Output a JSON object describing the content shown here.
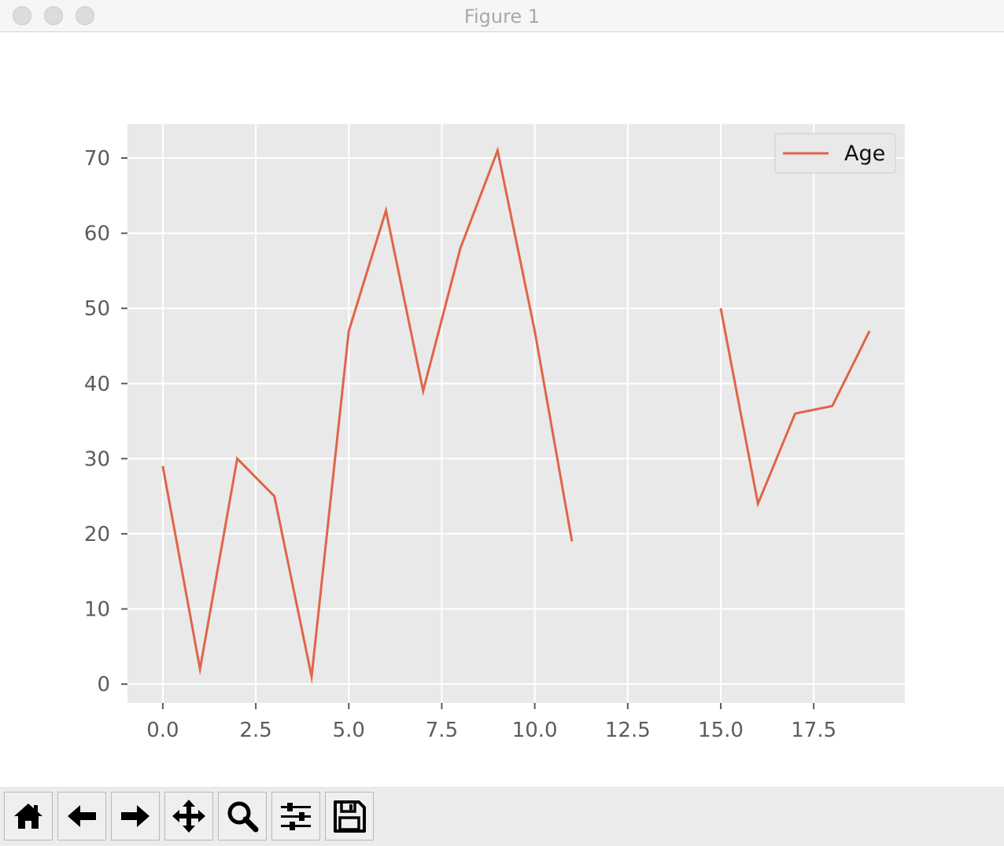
{
  "window": {
    "title": "Figure 1",
    "traffic_lights": [
      "close",
      "minimize",
      "zoom"
    ]
  },
  "toolbar": {
    "buttons": [
      {
        "name": "home",
        "icon": "home-icon"
      },
      {
        "name": "back",
        "icon": "arrow-left-icon"
      },
      {
        "name": "forward",
        "icon": "arrow-right-icon"
      },
      {
        "name": "pan",
        "icon": "move-icon"
      },
      {
        "name": "zoom",
        "icon": "search-icon"
      },
      {
        "name": "configure-subplots",
        "icon": "sliders-icon"
      },
      {
        "name": "save",
        "icon": "save-icon"
      }
    ]
  },
  "chart_data": {
    "type": "line",
    "title": "",
    "xlabel": "",
    "ylabel": "",
    "xlim": [
      -0.95,
      19.95
    ],
    "ylim": [
      -2.5,
      74.5
    ],
    "xticks": [
      0.0,
      2.5,
      5.0,
      7.5,
      10.0,
      12.5,
      15.0,
      17.5
    ],
    "xtick_labels": [
      "0.0",
      "2.5",
      "5.0",
      "7.5",
      "10.0",
      "12.5",
      "15.0",
      "17.5"
    ],
    "yticks": [
      0,
      10,
      20,
      30,
      40,
      50,
      60,
      70
    ],
    "ytick_labels": [
      "0",
      "10",
      "20",
      "30",
      "40",
      "50",
      "60",
      "70"
    ],
    "grid": true,
    "legend": "top-right",
    "colors": {
      "plot_bg": "#e9e9e9",
      "grid": "#ffffff",
      "tick_text": "#5c5c5c",
      "line": "#e06448"
    },
    "series": [
      {
        "name": "Age",
        "color": "#e06448",
        "x": [
          0,
          1,
          2,
          3,
          4,
          5,
          6,
          7,
          8,
          9,
          10,
          11,
          12,
          13,
          14,
          15,
          16,
          17,
          18,
          19
        ],
        "y": [
          29,
          2,
          30,
          25,
          1,
          47,
          63,
          39,
          58,
          71,
          47,
          19,
          null,
          null,
          null,
          50,
          24,
          36,
          37,
          47
        ]
      }
    ]
  }
}
